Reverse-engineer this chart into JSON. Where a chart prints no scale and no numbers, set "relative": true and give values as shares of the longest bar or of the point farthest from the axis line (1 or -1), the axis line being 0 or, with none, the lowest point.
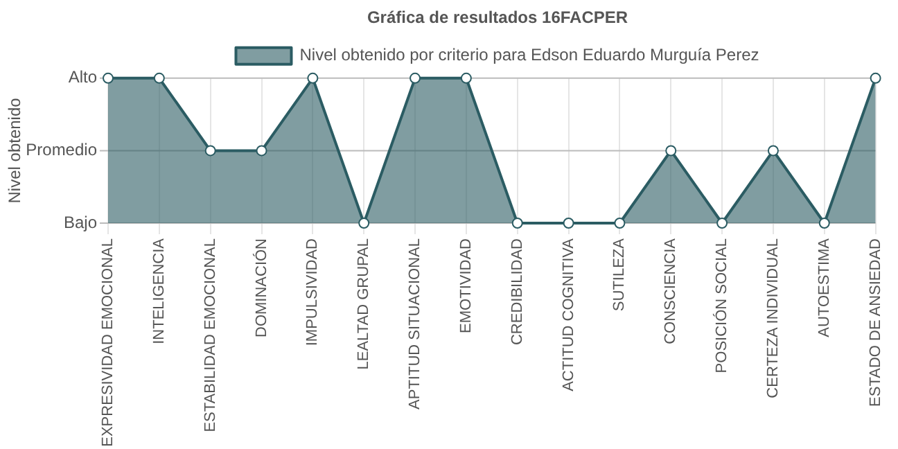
{
  "chart_data": {
    "type": "area",
    "title": "Gráfica de resultados 16FACPER",
    "ylabel": "Nivel obtenido",
    "categories": [
      "EXPRESIVIDAD EMOCIONAL",
      "INTELIGENCIA",
      "ESTABILIDAD EMOCIONAL",
      "DOMINACIÓN",
      "IMPULSIVIDAD",
      "LEALTAD GRUPAL",
      "APTITUD SITUACIONAL",
      "EMOTIVIDAD",
      "CREDIBILIDAD",
      "ACTITUD COGNITIVA",
      "SUTILEZA",
      "CONSCIENCIA",
      "POSICIÓN SOCIAL",
      "CERTEZA INDIVIDUAL",
      "AUTOESTIMA",
      "ESTADO DE ANSIEDAD"
    ],
    "series": [
      {
        "name": "Nivel obtenido por criterio para Edson Eduardo Murguía Perez",
        "color": "#2b5c63",
        "values": [
          1,
          1,
          0.5,
          0.5,
          1,
          0,
          1,
          1,
          0,
          0,
          0,
          0.5,
          0,
          0.5,
          0,
          1
        ]
      }
    ],
    "relative": true,
    "ref_lines": [
      {
        "axis": "y",
        "value": 0,
        "label": "Bajo",
        "color": "#bbbbbb"
      },
      {
        "axis": "y",
        "value": 0.5,
        "label": "Promedio",
        "color": "#bbbbbb"
      },
      {
        "axis": "y",
        "value": 1,
        "label": "Alto",
        "color": "#bbbbbb"
      }
    ],
    "grid": "x",
    "legend": "top",
    "marker": "circle",
    "line_style": "solid"
  }
}
